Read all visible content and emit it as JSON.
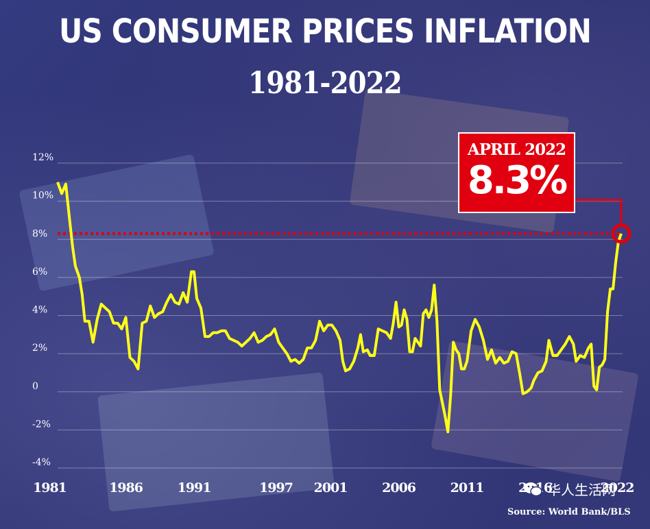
{
  "title": "US CONSUMER PRICES INFLATION",
  "subtitle": "1981-2022",
  "callout": {
    "date": "APRIL 2022",
    "value": "8.3%"
  },
  "source": "Source: World Bank/BLS",
  "watermark": "华人生活网",
  "colors": {
    "line": "#ffff1a",
    "highlight": "#e0000f",
    "text": "#ffffff"
  },
  "chart_data": {
    "type": "line",
    "title": "US CONSUMER PRICES INFLATION",
    "subtitle": "1981-2022",
    "xlabel": "",
    "ylabel": "",
    "xlim": [
      1981,
      2022.4
    ],
    "ylim": [
      -4,
      12
    ],
    "y_ticks": [
      -4,
      -2,
      0,
      2,
      4,
      6,
      8,
      10,
      12
    ],
    "y_tick_labels": [
      "-4%",
      "-2%",
      "0",
      "2%",
      "4%",
      "6%",
      "8%",
      "10%",
      "12%"
    ],
    "x_ticks": [
      1981,
      1986,
      1991,
      1997,
      2001,
      2006,
      2011,
      2016,
      2022
    ],
    "x_tick_labels": [
      "1981",
      "1986",
      "1991",
      "1997",
      "2001",
      "2006",
      "2011",
      "2016",
      "2022"
    ],
    "grid": "horizontal",
    "reference_line": {
      "y": 8.3,
      "style": "dotted",
      "color": "#e0000f"
    },
    "annotation": {
      "x": 2022.3,
      "y": 8.3,
      "label": "APRIL 2022 8.3%"
    },
    "series": [
      {
        "values": [
          [
            1981.0,
            11.0
          ],
          [
            1981.3,
            10.4
          ],
          [
            1981.6,
            10.9
          ],
          [
            1981.9,
            8.9
          ],
          [
            1982.1,
            7.6
          ],
          [
            1982.3,
            6.6
          ],
          [
            1982.6,
            6.0
          ],
          [
            1982.8,
            5.1
          ],
          [
            1983.0,
            3.7
          ],
          [
            1983.3,
            3.7
          ],
          [
            1983.6,
            2.6
          ],
          [
            1983.9,
            3.8
          ],
          [
            1984.2,
            4.6
          ],
          [
            1984.5,
            4.4
          ],
          [
            1984.8,
            4.2
          ],
          [
            1985.1,
            3.6
          ],
          [
            1985.4,
            3.6
          ],
          [
            1985.7,
            3.3
          ],
          [
            1986.0,
            3.9
          ],
          [
            1986.3,
            1.8
          ],
          [
            1986.6,
            1.6
          ],
          [
            1986.9,
            1.2
          ],
          [
            1987.2,
            3.6
          ],
          [
            1987.5,
            3.7
          ],
          [
            1987.8,
            4.5
          ],
          [
            1988.1,
            3.9
          ],
          [
            1988.4,
            4.1
          ],
          [
            1988.7,
            4.2
          ],
          [
            1989.0,
            4.7
          ],
          [
            1989.3,
            5.1
          ],
          [
            1989.6,
            4.7
          ],
          [
            1989.9,
            4.6
          ],
          [
            1990.2,
            5.2
          ],
          [
            1990.5,
            4.7
          ],
          [
            1990.8,
            6.3
          ],
          [
            1991.0,
            6.3
          ],
          [
            1991.2,
            4.9
          ],
          [
            1991.5,
            4.4
          ],
          [
            1991.8,
            2.9
          ],
          [
            1992.1,
            2.9
          ],
          [
            1992.4,
            3.1
          ],
          [
            1992.7,
            3.1
          ],
          [
            1993.0,
            3.2
          ],
          [
            1993.3,
            3.2
          ],
          [
            1993.6,
            2.8
          ],
          [
            1993.9,
            2.7
          ],
          [
            1994.2,
            2.6
          ],
          [
            1994.5,
            2.4
          ],
          [
            1994.8,
            2.6
          ],
          [
            1995.1,
            2.8
          ],
          [
            1995.4,
            3.1
          ],
          [
            1995.7,
            2.6
          ],
          [
            1996.0,
            2.7
          ],
          [
            1996.3,
            2.9
          ],
          [
            1996.6,
            3.0
          ],
          [
            1996.9,
            3.3
          ],
          [
            1997.2,
            2.6
          ],
          [
            1997.5,
            2.3
          ],
          [
            1997.8,
            2.0
          ],
          [
            1998.1,
            1.6
          ],
          [
            1998.4,
            1.7
          ],
          [
            1998.7,
            1.5
          ],
          [
            1999.0,
            1.7
          ],
          [
            1999.3,
            2.3
          ],
          [
            1999.6,
            2.3
          ],
          [
            1999.9,
            2.7
          ],
          [
            2000.2,
            3.7
          ],
          [
            2000.5,
            3.2
          ],
          [
            2000.8,
            3.5
          ],
          [
            2001.1,
            3.5
          ],
          [
            2001.4,
            3.2
          ],
          [
            2001.7,
            2.7
          ],
          [
            2001.9,
            1.6
          ],
          [
            2002.1,
            1.1
          ],
          [
            2002.4,
            1.2
          ],
          [
            2002.7,
            1.6
          ],
          [
            2003.0,
            2.3
          ],
          [
            2003.2,
            3.0
          ],
          [
            2003.4,
            2.1
          ],
          [
            2003.7,
            2.2
          ],
          [
            2003.9,
            1.9
          ],
          [
            2004.2,
            1.9
          ],
          [
            2004.5,
            3.3
          ],
          [
            2004.8,
            3.2
          ],
          [
            2005.1,
            3.1
          ],
          [
            2005.4,
            2.8
          ],
          [
            2005.6,
            3.6
          ],
          [
            2005.8,
            4.7
          ],
          [
            2006.0,
            3.4
          ],
          [
            2006.2,
            3.5
          ],
          [
            2006.4,
            4.3
          ],
          [
            2006.6,
            3.8
          ],
          [
            2006.8,
            2.1
          ],
          [
            2007.0,
            2.1
          ],
          [
            2007.2,
            2.8
          ],
          [
            2007.4,
            2.6
          ],
          [
            2007.6,
            2.4
          ],
          [
            2007.8,
            4.1
          ],
          [
            2008.0,
            4.3
          ],
          [
            2008.2,
            3.9
          ],
          [
            2008.4,
            4.3
          ],
          [
            2008.6,
            5.6
          ],
          [
            2008.8,
            3.7
          ],
          [
            2009.0,
            0.1
          ],
          [
            2009.2,
            -0.6
          ],
          [
            2009.4,
            -1.3
          ],
          [
            2009.6,
            -2.1
          ],
          [
            2009.8,
            -0.2
          ],
          [
            2010.0,
            2.6
          ],
          [
            2010.2,
            2.2
          ],
          [
            2010.4,
            2.0
          ],
          [
            2010.6,
            1.2
          ],
          [
            2010.8,
            1.2
          ],
          [
            2011.0,
            1.6
          ],
          [
            2011.3,
            3.2
          ],
          [
            2011.6,
            3.8
          ],
          [
            2011.9,
            3.4
          ],
          [
            2012.2,
            2.7
          ],
          [
            2012.5,
            1.7
          ],
          [
            2012.8,
            2.2
          ],
          [
            2013.1,
            1.5
          ],
          [
            2013.4,
            1.8
          ],
          [
            2013.7,
            1.5
          ],
          [
            2014.0,
            1.6
          ],
          [
            2014.3,
            2.1
          ],
          [
            2014.6,
            2.0
          ],
          [
            2014.9,
            0.8
          ],
          [
            2015.1,
            -0.1
          ],
          [
            2015.4,
            0.0
          ],
          [
            2015.7,
            0.2
          ],
          [
            2015.9,
            0.6
          ],
          [
            2016.2,
            1.0
          ],
          [
            2016.5,
            1.1
          ],
          [
            2016.8,
            1.6
          ],
          [
            2017.0,
            2.7
          ],
          [
            2017.3,
            1.9
          ],
          [
            2017.6,
            1.9
          ],
          [
            2017.9,
            2.2
          ],
          [
            2018.2,
            2.5
          ],
          [
            2018.5,
            2.9
          ],
          [
            2018.8,
            2.5
          ],
          [
            2019.0,
            1.6
          ],
          [
            2019.3,
            1.9
          ],
          [
            2019.6,
            1.8
          ],
          [
            2019.9,
            2.3
          ],
          [
            2020.1,
            2.5
          ],
          [
            2020.3,
            0.3
          ],
          [
            2020.5,
            0.1
          ],
          [
            2020.7,
            1.3
          ],
          [
            2020.9,
            1.4
          ],
          [
            2021.1,
            1.7
          ],
          [
            2021.3,
            4.2
          ],
          [
            2021.5,
            5.4
          ],
          [
            2021.7,
            5.4
          ],
          [
            2021.9,
            6.8
          ],
          [
            2022.1,
            7.9
          ],
          [
            2022.3,
            8.3
          ]
        ]
      }
    ]
  }
}
